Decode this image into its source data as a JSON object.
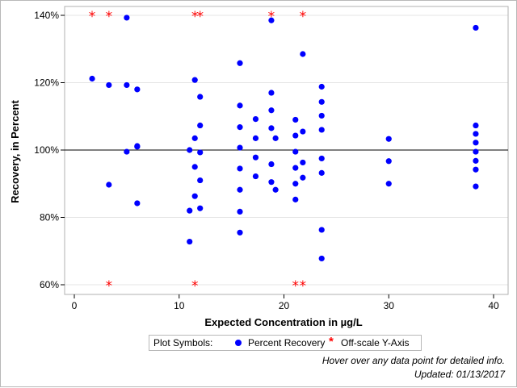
{
  "chart_data": {
    "type": "scatter",
    "title": "",
    "xlabel": "Expected Concentration in µg/L",
    "ylabel": "Recovery, in Percent",
    "xlim": [
      0,
      40
    ],
    "ylim": [
      60,
      140
    ],
    "x_ticks": [
      0,
      10,
      20,
      30,
      40
    ],
    "y_ticks": [
      60,
      80,
      100,
      120,
      140
    ],
    "y_tick_labels": [
      "60%",
      "80%",
      "100%",
      "120%",
      "140%"
    ],
    "reference_line_y": 100,
    "grid": "horizontal",
    "series": [
      {
        "name": "Percent Recovery",
        "marker": "circle",
        "color": "#0000ff",
        "points": [
          [
            1.7,
            121.2
          ],
          [
            3.3,
            119.3
          ],
          [
            3.3,
            89.7
          ],
          [
            5.0,
            139.3
          ],
          [
            5.0,
            119.3
          ],
          [
            5.0,
            99.5
          ],
          [
            6.0,
            118.0
          ],
          [
            6.0,
            101.2
          ],
          [
            6.0,
            101.0
          ],
          [
            6.0,
            84.2
          ],
          [
            11.0,
            100.0
          ],
          [
            11.0,
            82.0
          ],
          [
            11.0,
            72.8
          ],
          [
            11.5,
            120.8
          ],
          [
            11.5,
            103.5
          ],
          [
            11.5,
            95.0
          ],
          [
            11.5,
            86.3
          ],
          [
            12.0,
            115.8
          ],
          [
            12.0,
            107.3
          ],
          [
            12.0,
            99.3
          ],
          [
            12.0,
            91.0
          ],
          [
            12.0,
            82.7
          ],
          [
            15.8,
            125.8
          ],
          [
            15.8,
            113.2
          ],
          [
            15.8,
            106.8
          ],
          [
            15.8,
            100.7
          ],
          [
            15.8,
            94.5
          ],
          [
            15.8,
            88.2
          ],
          [
            15.8,
            81.7
          ],
          [
            15.8,
            75.5
          ],
          [
            17.3,
            109.2
          ],
          [
            17.3,
            103.5
          ],
          [
            17.3,
            97.8
          ],
          [
            17.3,
            92.2
          ],
          [
            18.8,
            138.5
          ],
          [
            18.8,
            117.0
          ],
          [
            18.8,
            111.8
          ],
          [
            18.8,
            106.5
          ],
          [
            18.8,
            95.8
          ],
          [
            18.8,
            90.5
          ],
          [
            19.2,
            103.5
          ],
          [
            19.2,
            88.2
          ],
          [
            21.1,
            109.0
          ],
          [
            21.1,
            104.3
          ],
          [
            21.1,
            99.5
          ],
          [
            21.1,
            94.7
          ],
          [
            21.1,
            90.0
          ],
          [
            21.1,
            85.3
          ],
          [
            21.8,
            128.5
          ],
          [
            21.8,
            105.5
          ],
          [
            21.8,
            96.3
          ],
          [
            21.8,
            91.8
          ],
          [
            23.6,
            118.8
          ],
          [
            23.6,
            114.3
          ],
          [
            23.6,
            110.2
          ],
          [
            23.6,
            106.0
          ],
          [
            23.6,
            97.5
          ],
          [
            23.6,
            93.2
          ],
          [
            23.6,
            76.3
          ],
          [
            23.6,
            67.8
          ],
          [
            30.0,
            103.3
          ],
          [
            30.0,
            96.7
          ],
          [
            30.0,
            90.0
          ],
          [
            38.3,
            136.3
          ],
          [
            38.3,
            107.3
          ],
          [
            38.3,
            104.8
          ],
          [
            38.3,
            102.2
          ],
          [
            38.3,
            99.5
          ],
          [
            38.3,
            96.8
          ],
          [
            38.3,
            94.2
          ],
          [
            38.3,
            89.2
          ]
        ]
      },
      {
        "name": "Off-scale Y-Axis",
        "marker": "asterisk",
        "color": "#ff0000",
        "points": [
          [
            1.7,
            140
          ],
          [
            3.3,
            140
          ],
          [
            11.5,
            140
          ],
          [
            12.0,
            140
          ],
          [
            18.8,
            140
          ],
          [
            21.8,
            140
          ],
          [
            3.3,
            60
          ],
          [
            11.5,
            60
          ],
          [
            21.1,
            60
          ],
          [
            21.8,
            60
          ]
        ]
      }
    ]
  },
  "legend": {
    "title": "Plot Symbols:",
    "items": [
      {
        "label": "Percent Recovery",
        "symbol": "●",
        "color": "#0000ff"
      },
      {
        "label": "Off-scale Y-Axis",
        "symbol": "*",
        "color": "#ff0000"
      }
    ]
  },
  "footer": {
    "hover_note": "Hover over any data point for detailed info.",
    "updated": "Updated: 01/13/2017"
  }
}
